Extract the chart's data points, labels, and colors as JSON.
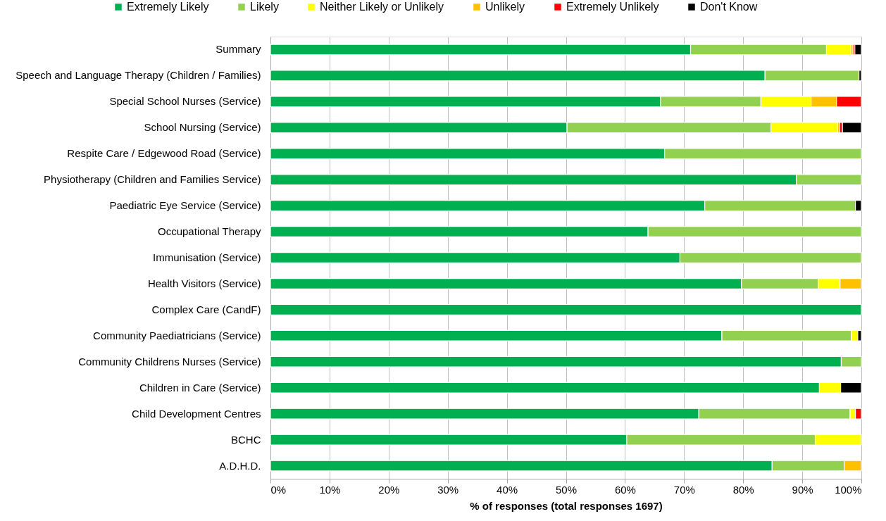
{
  "chart_data": {
    "type": "bar",
    "orientation": "horizontal",
    "stacked": true,
    "categories": [
      "Summary",
      "Speech and Language Therapy (Children / Families)",
      "Special School Nurses (Service)",
      "School Nursing (Service)",
      "Respite Care / Edgewood Road (Service)",
      "Physiotherapy (Children and Families Service)",
      "Paediatric Eye Service (Service)",
      "Occupational Therapy",
      "Immunisation (Service)",
      "Health Visitors (Service)",
      "Complex Care (CandF)",
      "Community Paediatricians (Service)",
      "Community Childrens Nurses (Service)",
      "Children in Care (Service)",
      "Child Development Centres",
      "BCHC",
      "A.D.H.D."
    ],
    "series": [
      {
        "name": "Extremely Likely",
        "color": "#00b050",
        "values": [
          71.1,
          83.7,
          66.0,
          50.2,
          66.7,
          89.0,
          73.5,
          63.9,
          69.3,
          79.7,
          100,
          76.4,
          96.6,
          92.9,
          72.5,
          60.3,
          84.9
        ]
      },
      {
        "name": "Likely",
        "color": "#92d050",
        "values": [
          23.0,
          15.9,
          17.0,
          34.5,
          33.3,
          11.0,
          25.5,
          36.1,
          30.7,
          13.0,
          null,
          21.9,
          3.4,
          null,
          25.6,
          31.9,
          12.2
        ]
      },
      {
        "name": "Neither Likely or Unlikely",
        "color": "#ffff00",
        "values": [
          4.1,
          null,
          8.5,
          11.3,
          null,
          null,
          null,
          null,
          null,
          3.7,
          null,
          1.1,
          null,
          3.6,
          0.9,
          7.8,
          null
        ]
      },
      {
        "name": "Unlikely",
        "color": "#ffc000",
        "values": [
          0.4,
          null,
          4.3,
          0.3,
          null,
          null,
          null,
          null,
          null,
          3.6,
          null,
          null,
          null,
          null,
          null,
          null,
          2.9
        ]
      },
      {
        "name": "Extremely Unlikely",
        "color": "#ff0000",
        "values": [
          0.3,
          null,
          4.2,
          0.5,
          null,
          null,
          null,
          null,
          null,
          null,
          null,
          null,
          null,
          null,
          1.0,
          null,
          null
        ]
      },
      {
        "name": "Don't Know",
        "color": "#000000",
        "values": [
          1.1,
          0.4,
          null,
          3.2,
          null,
          null,
          1.0,
          null,
          null,
          null,
          null,
          0.6,
          null,
          3.5,
          null,
          null,
          null
        ]
      }
    ],
    "xlabel": "% of responses (total responses 1697)",
    "xlim": [
      0,
      100
    ],
    "xticks": [
      {
        "value": 0,
        "label": "0%"
      },
      {
        "value": 10,
        "label": "10%"
      },
      {
        "value": 20,
        "label": "20%"
      },
      {
        "value": 30,
        "label": "30%"
      },
      {
        "value": 40,
        "label": "40%"
      },
      {
        "value": 50,
        "label": "50%"
      },
      {
        "value": 60,
        "label": "60%"
      },
      {
        "value": 70,
        "label": "70%"
      },
      {
        "value": 80,
        "label": "80%"
      },
      {
        "value": 90,
        "label": "90%"
      },
      {
        "value": 100,
        "label": "100%"
      }
    ],
    "grid": "x",
    "legend": "top"
  }
}
